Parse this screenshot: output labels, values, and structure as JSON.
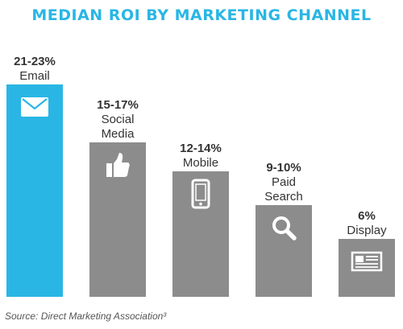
{
  "chart_data": {
    "type": "bar",
    "title": "MEDIAN ROI BY MARKETING CHANNEL",
    "categories": [
      [
        "Email"
      ],
      [
        "Social",
        "Media"
      ],
      [
        "Mobile"
      ],
      [
        "Paid",
        "Search"
      ],
      [
        "Display"
      ]
    ],
    "value_labels": [
      "21-23%",
      "15-17%",
      "12-14%",
      "9-10%",
      "6%"
    ],
    "values": [
      22,
      16,
      13,
      9.5,
      6
    ],
    "icons": [
      "envelope-icon",
      "thumbs-up-icon",
      "smartphone-icon",
      "magnifier-icon",
      "newspaper-icon"
    ],
    "ylim": [
      0,
      23
    ],
    "colors": {
      "highlight": "#29b6e4",
      "bar": "#8c8c8c",
      "title": "#29b6e4",
      "icon": "#ffffff"
    },
    "source": "Source: Direct Marketing Association³"
  }
}
